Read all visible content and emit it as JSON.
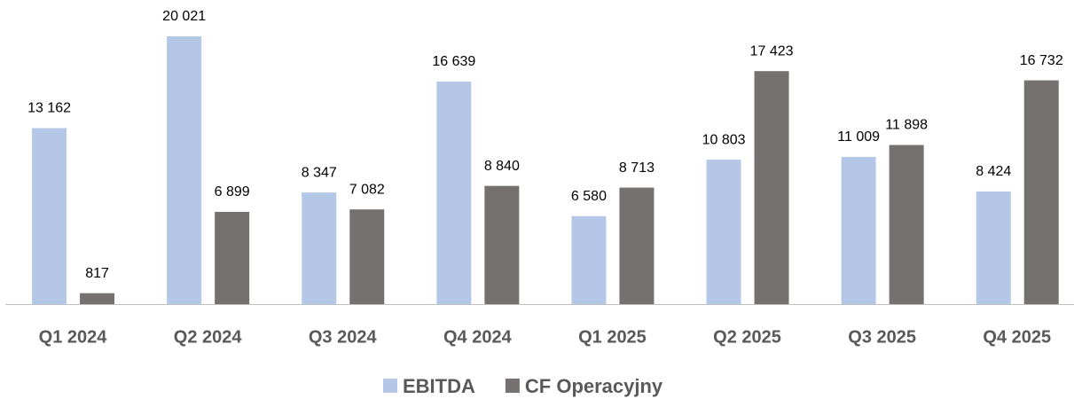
{
  "chart_data": {
    "type": "bar",
    "categories": [
      "Q1 2024",
      "Q2 2024",
      "Q3 2024",
      "Q4 2024",
      "Q1 2025",
      "Q2 2025",
      "Q3 2025",
      "Q4 2025"
    ],
    "series": [
      {
        "name": "EBITDA",
        "color": "#b4c7e7",
        "values": [
          13162,
          20021,
          8347,
          16639,
          6580,
          10803,
          11009,
          8424
        ],
        "value_labels": [
          "13 162",
          "20 021",
          "8 347",
          "16 639",
          "6 580",
          "10 803",
          "11 009",
          "8 424"
        ]
      },
      {
        "name": "CF Operacyjny",
        "color": "#767171",
        "values": [
          817,
          6899,
          7082,
          8840,
          8713,
          17423,
          11898,
          16732
        ],
        "value_labels": [
          "817",
          "6 899",
          "7 082",
          "8 840",
          "8 713",
          "17 423",
          "11 898",
          "16 732"
        ]
      }
    ],
    "legend": "bottom"
  }
}
